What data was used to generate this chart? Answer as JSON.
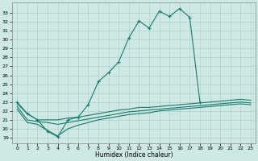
{
  "xlabel": "Humidex (Indice chaleur)",
  "background_color": "#cde8e5",
  "grid_color": "#b0d0cc",
  "line_color": "#1a7a6e",
  "x_ticks": [
    0,
    1,
    2,
    3,
    4,
    5,
    6,
    7,
    8,
    9,
    10,
    11,
    12,
    13,
    14,
    15,
    16,
    17,
    18,
    19,
    20,
    21,
    22,
    23
  ],
  "y_ticks": [
    19,
    20,
    21,
    22,
    23,
    24,
    25,
    26,
    27,
    28,
    29,
    30,
    31,
    32,
    33
  ],
  "ylim": [
    18.4,
    34.2
  ],
  "xlim": [
    -0.5,
    23.5
  ],
  "series": {
    "main": {
      "x": [
        0,
        1,
        2,
        3,
        4,
        5,
        6,
        7,
        8,
        9,
        10,
        11,
        12,
        13,
        14,
        15,
        16,
        17,
        18
      ],
      "y": [
        23.0,
        21.7,
        21.0,
        19.7,
        19.1,
        21.0,
        21.3,
        22.7,
        25.3,
        26.3,
        27.5,
        30.2,
        32.1,
        31.3,
        33.2,
        32.6,
        33.5,
        32.5,
        23.0
      ]
    },
    "flat1": {
      "x": [
        0,
        1,
        2,
        3,
        4,
        5,
        6,
        7,
        8,
        9,
        10,
        11,
        12,
        13,
        14,
        15,
        16,
        17,
        18,
        19,
        20,
        21,
        22,
        23
      ],
      "y": [
        22.8,
        21.7,
        21.0,
        21.0,
        21.0,
        21.2,
        21.3,
        21.5,
        21.7,
        21.9,
        22.1,
        22.2,
        22.4,
        22.4,
        22.5,
        22.6,
        22.7,
        22.8,
        22.9,
        23.0,
        23.1,
        23.2,
        23.3,
        23.2
      ]
    },
    "flat2": {
      "x": [
        0,
        1,
        2,
        3,
        4,
        5,
        6,
        7,
        8,
        9,
        10,
        11,
        12,
        13,
        14,
        15,
        16,
        17,
        18,
        19,
        20,
        21,
        22,
        23
      ],
      "y": [
        22.5,
        21.0,
        20.8,
        20.7,
        20.5,
        20.7,
        20.9,
        21.1,
        21.3,
        21.5,
        21.7,
        21.9,
        22.0,
        22.1,
        22.2,
        22.3,
        22.4,
        22.5,
        22.6,
        22.7,
        22.8,
        22.9,
        23.0,
        22.9
      ]
    },
    "flat3": {
      "x": [
        0,
        1,
        2,
        3,
        4,
        5,
        6,
        7,
        8,
        9,
        10,
        11,
        12,
        13,
        14,
        15,
        16,
        17,
        18,
        19,
        20,
        21,
        22,
        23
      ],
      "y": [
        22.2,
        20.7,
        20.5,
        19.8,
        19.2,
        20.0,
        20.4,
        20.7,
        21.0,
        21.2,
        21.4,
        21.6,
        21.7,
        21.8,
        22.0,
        22.1,
        22.2,
        22.3,
        22.4,
        22.5,
        22.6,
        22.7,
        22.8,
        22.7
      ]
    }
  }
}
